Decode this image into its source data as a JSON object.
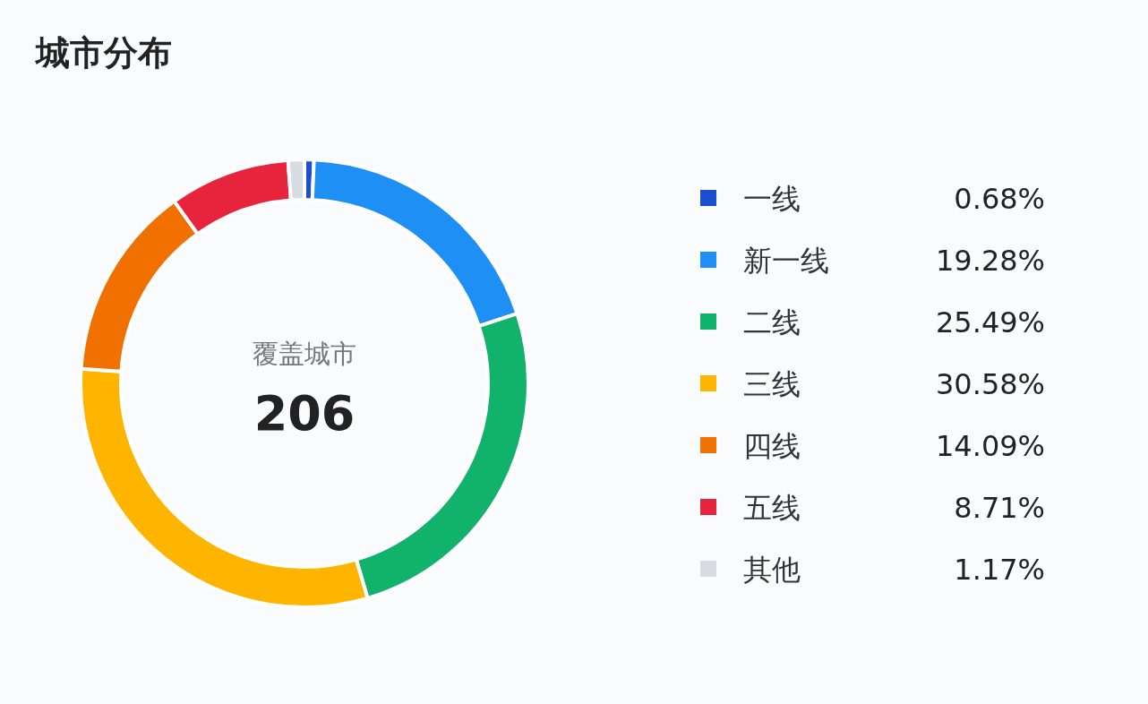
{
  "chart_data": {
    "type": "donut",
    "title": "城市分布",
    "categories": [
      "一线",
      "新一线",
      "二线",
      "三线",
      "四线",
      "五线",
      "其他"
    ],
    "values": [
      0.68,
      19.28,
      25.49,
      30.58,
      14.09,
      8.71,
      1.17
    ],
    "colors": [
      "#1a4fd0",
      "#1e8ff5",
      "#10b26c",
      "#ffb400",
      "#f07000",
      "#e8243c",
      "#d8dce1"
    ],
    "value_labels": [
      "0.68%",
      "19.28%",
      "25.49%",
      "30.58%",
      "14.09%",
      "8.71%",
      "1.17%"
    ],
    "annotations": [
      "覆盖城市",
      "206"
    ],
    "legend": "right"
  }
}
